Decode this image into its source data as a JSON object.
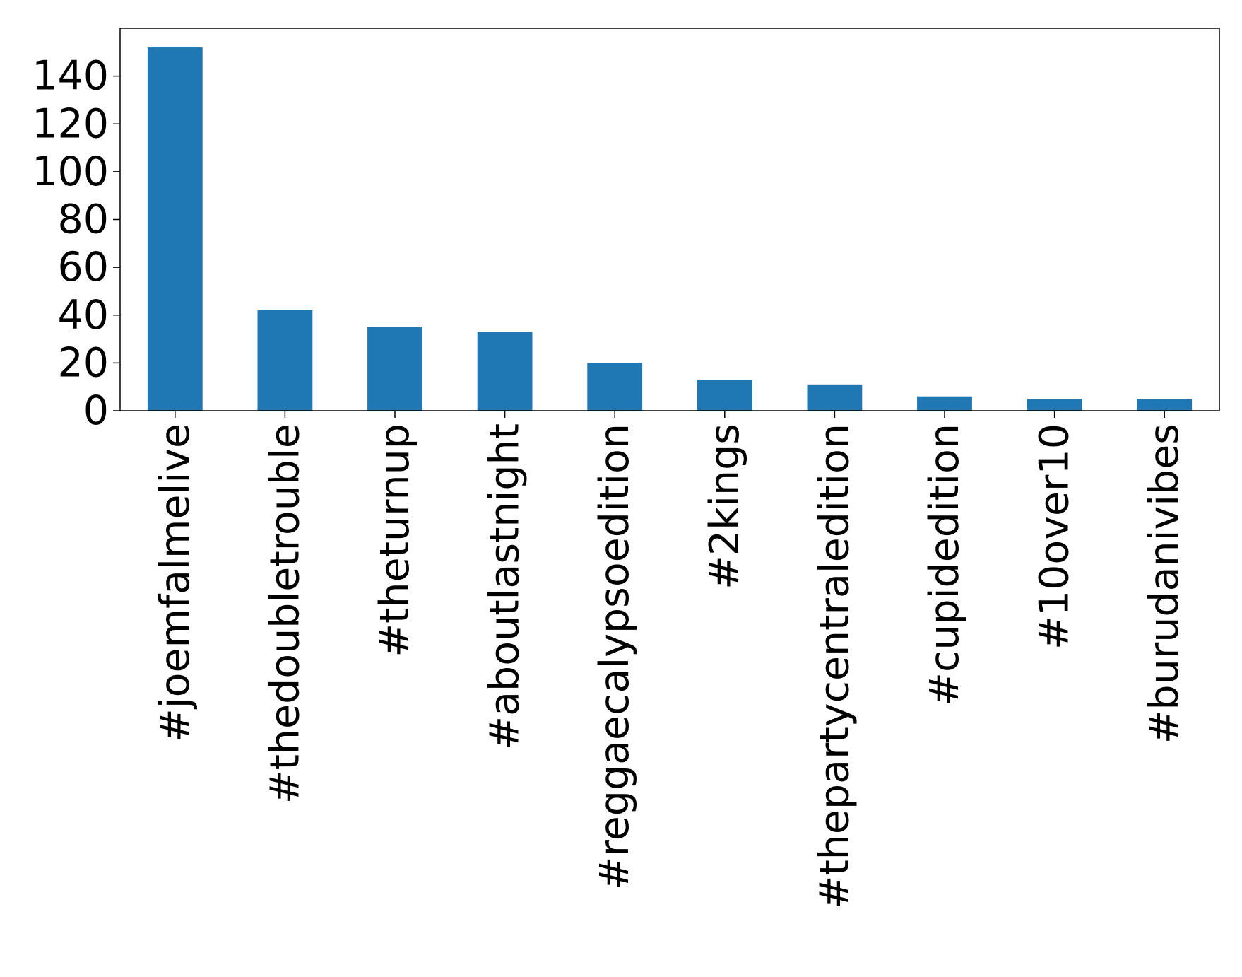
{
  "chart_data": {
    "type": "bar",
    "categories": [
      "#joemfalmelive",
      "#thedoubletrouble",
      "#theturnup",
      "#aboutlastnight",
      "#reggaecalypsoedition",
      "#2kings",
      "#thepartycentraledition",
      "#cupidedition",
      "#10over10",
      "#burudanivibes"
    ],
    "values": [
      152,
      42,
      35,
      33,
      20,
      13,
      11,
      6,
      5,
      5
    ],
    "ylim": [
      0,
      160
    ],
    "yticks": [
      0,
      20,
      40,
      60,
      80,
      100,
      120,
      140
    ],
    "bar_color": "#1f77b4",
    "title": "",
    "xlabel": "",
    "ylabel": "",
    "grid": false,
    "legend": false
  }
}
